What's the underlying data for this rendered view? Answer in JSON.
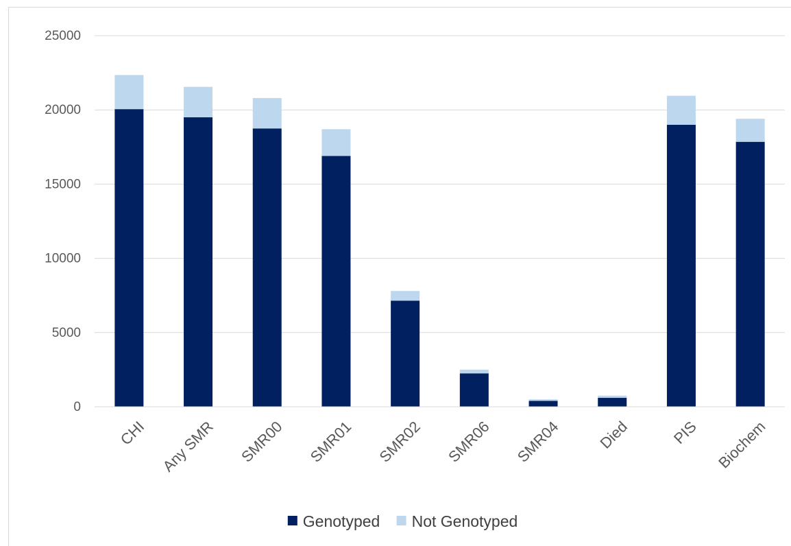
{
  "chart_data": {
    "type": "bar",
    "stacked": true,
    "categories": [
      "CHI",
      "Any SMR",
      "SMR00",
      "SMR01",
      "SMR02",
      "SMR06",
      "SMR04",
      "Died",
      "PIS",
      "Biochem"
    ],
    "series": [
      {
        "name": "Genotyped",
        "color": "#002060",
        "values": [
          20050,
          19500,
          18750,
          16900,
          7150,
          2250,
          400,
          600,
          19000,
          17850
        ]
      },
      {
        "name": "Not Genotyped",
        "color": "#bdd7ee",
        "values": [
          2300,
          2050,
          2050,
          1800,
          650,
          250,
          100,
          150,
          1950,
          1550
        ]
      }
    ],
    "y_ticks": [
      0,
      5000,
      10000,
      15000,
      20000,
      25000
    ],
    "ylim": [
      0,
      25000
    ],
    "grid": true,
    "legend_position": "bottom",
    "title": "",
    "xlabel": "",
    "ylabel": ""
  }
}
